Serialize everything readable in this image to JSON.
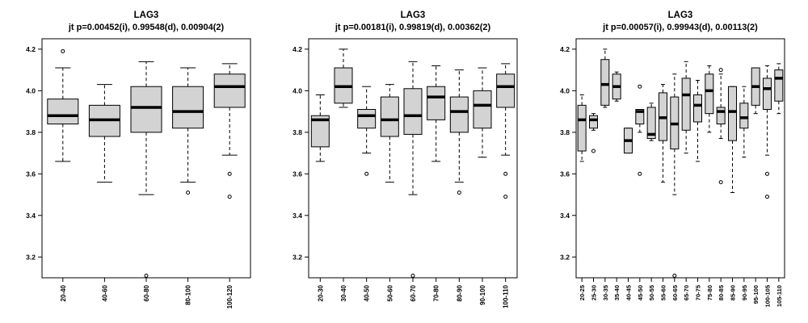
{
  "chart_data": [
    {
      "type": "boxplot",
      "title": "LAG3",
      "subtitle": "jt p=0.00452(i), 0.99548(d), 0.00904(2)",
      "ylim": [
        3.1,
        4.25
      ],
      "yticks": [
        "3.2",
        "3.4",
        "3.6",
        "3.8",
        "4.0",
        "4.2"
      ],
      "categories": [
        "20-40",
        "40-60",
        "60-80",
        "80-100",
        "100-120"
      ],
      "boxes": [
        {
          "min": 3.66,
          "q1": 3.84,
          "median": 3.88,
          "q3": 3.96,
          "max": 4.11,
          "outliers": [
            4.19
          ]
        },
        {
          "min": 3.56,
          "q1": 3.78,
          "median": 3.86,
          "q3": 3.93,
          "max": 4.03,
          "outliers": []
        },
        {
          "min": 3.5,
          "q1": 3.8,
          "median": 3.92,
          "q3": 4.02,
          "max": 4.14,
          "outliers": [
            3.11
          ]
        },
        {
          "min": 3.56,
          "q1": 3.82,
          "median": 3.9,
          "q3": 4.02,
          "max": 4.11,
          "outliers": [
            3.51
          ]
        },
        {
          "min": 3.69,
          "q1": 3.92,
          "median": 4.02,
          "q3": 4.08,
          "max": 4.13,
          "outliers": [
            3.6,
            3.49
          ]
        }
      ]
    },
    {
      "type": "boxplot",
      "title": "LAG3",
      "subtitle": "jt p=0.00181(i), 0.99819(d), 0.00362(2)",
      "ylim": [
        3.1,
        4.25
      ],
      "yticks": [
        "3.2",
        "3.4",
        "3.6",
        "3.8",
        "4.0",
        "4.2"
      ],
      "categories": [
        "20-30",
        "30-40",
        "40-50",
        "50-60",
        "60-70",
        "70-80",
        "80-90",
        "90-100",
        "100-110"
      ],
      "boxes": [
        {
          "min": 3.66,
          "q1": 3.73,
          "median": 3.86,
          "q3": 3.88,
          "max": 3.98,
          "outliers": []
        },
        {
          "min": 3.92,
          "q1": 3.94,
          "median": 4.02,
          "q3": 4.11,
          "max": 4.2,
          "outliers": []
        },
        {
          "min": 3.7,
          "q1": 3.82,
          "median": 3.88,
          "q3": 3.91,
          "max": 4.02,
          "outliers": [
            3.6
          ]
        },
        {
          "min": 3.56,
          "q1": 3.78,
          "median": 3.86,
          "q3": 3.97,
          "max": 4.03,
          "outliers": []
        },
        {
          "min": 3.5,
          "q1": 3.79,
          "median": 3.88,
          "q3": 4.01,
          "max": 4.14,
          "outliers": [
            3.11
          ]
        },
        {
          "min": 3.66,
          "q1": 3.86,
          "median": 3.97,
          "q3": 4.02,
          "max": 4.12,
          "outliers": []
        },
        {
          "min": 3.56,
          "q1": 3.8,
          "median": 3.9,
          "q3": 3.97,
          "max": 4.1,
          "outliers": [
            3.51
          ]
        },
        {
          "min": 3.68,
          "q1": 3.82,
          "median": 3.93,
          "q3": 4.0,
          "max": 4.11,
          "outliers": []
        },
        {
          "min": 3.69,
          "q1": 3.92,
          "median": 4.02,
          "q3": 4.08,
          "max": 4.13,
          "outliers": [
            3.6,
            3.49
          ]
        }
      ]
    },
    {
      "type": "boxplot",
      "title": "LAG3",
      "subtitle": "jt p=0.00057(i), 0.99943(d), 0.00113(2)",
      "ylim": [
        3.1,
        4.25
      ],
      "yticks": [
        "3.2",
        "3.4",
        "3.6",
        "3.8",
        "4.0",
        "4.2"
      ],
      "categories": [
        "20-25",
        "25-30",
        "30-35",
        "35-40",
        "40-45",
        "45-50",
        "50-55",
        "55-60",
        "60-65",
        "65-70",
        "70-75",
        "75-80",
        "80-85",
        "85-90",
        "90-95",
        "95-100",
        "100-105",
        "105-110"
      ],
      "boxes": [
        {
          "min": 3.66,
          "q1": 3.71,
          "median": 3.86,
          "q3": 3.93,
          "max": 3.98,
          "outliers": []
        },
        {
          "min": 3.81,
          "q1": 3.82,
          "median": 3.86,
          "q3": 3.88,
          "max": 3.89,
          "outliers": [
            3.71
          ]
        },
        {
          "min": 3.92,
          "q1": 3.93,
          "median": 4.03,
          "q3": 4.15,
          "max": 4.2,
          "outliers": []
        },
        {
          "min": 3.95,
          "q1": 3.96,
          "median": 4.02,
          "q3": 4.08,
          "max": 4.09,
          "outliers": []
        },
        {
          "min": 3.7,
          "q1": 3.7,
          "median": 3.76,
          "q3": 3.82,
          "max": 3.82,
          "outliers": []
        },
        {
          "min": 3.8,
          "q1": 3.84,
          "median": 3.9,
          "q3": 3.91,
          "max": 3.91,
          "outliers": [
            4.02,
            3.6
          ]
        },
        {
          "min": 3.76,
          "q1": 3.77,
          "median": 3.79,
          "q3": 3.92,
          "max": 3.94,
          "outliers": []
        },
        {
          "min": 3.56,
          "q1": 3.76,
          "median": 3.87,
          "q3": 3.99,
          "max": 4.03,
          "outliers": []
        },
        {
          "min": 3.5,
          "q1": 3.72,
          "median": 3.84,
          "q3": 3.97,
          "max": 4.08,
          "outliers": [
            3.11
          ]
        },
        {
          "min": 3.7,
          "q1": 3.81,
          "median": 3.98,
          "q3": 4.06,
          "max": 4.14,
          "outliers": []
        },
        {
          "min": 3.66,
          "q1": 3.85,
          "median": 3.93,
          "q3": 3.98,
          "max": 4.05,
          "outliers": []
        },
        {
          "min": 3.8,
          "q1": 3.89,
          "median": 4.0,
          "q3": 4.08,
          "max": 4.12,
          "outliers": []
        },
        {
          "min": 3.77,
          "q1": 3.84,
          "median": 3.9,
          "q3": 3.92,
          "max": 4.08,
          "outliers": [
            4.1,
            3.56
          ]
        },
        {
          "min": 3.51,
          "q1": 3.76,
          "median": 3.9,
          "q3": 4.02,
          "max": 4.02,
          "outliers": []
        },
        {
          "min": 3.68,
          "q1": 3.82,
          "median": 3.87,
          "q3": 3.94,
          "max": 4.02,
          "outliers": []
        },
        {
          "min": 3.89,
          "q1": 3.93,
          "median": 4.02,
          "q3": 4.11,
          "max": 4.11,
          "outliers": []
        },
        {
          "min": 3.69,
          "q1": 3.91,
          "median": 4.01,
          "q3": 4.06,
          "max": 4.12,
          "outliers": [
            3.6,
            3.49
          ]
        },
        {
          "min": 3.89,
          "q1": 3.95,
          "median": 4.06,
          "q3": 4.1,
          "max": 4.13,
          "outliers": []
        }
      ]
    }
  ],
  "colors": {
    "box_fill": "#d3d3d3",
    "stroke": "#000000"
  }
}
